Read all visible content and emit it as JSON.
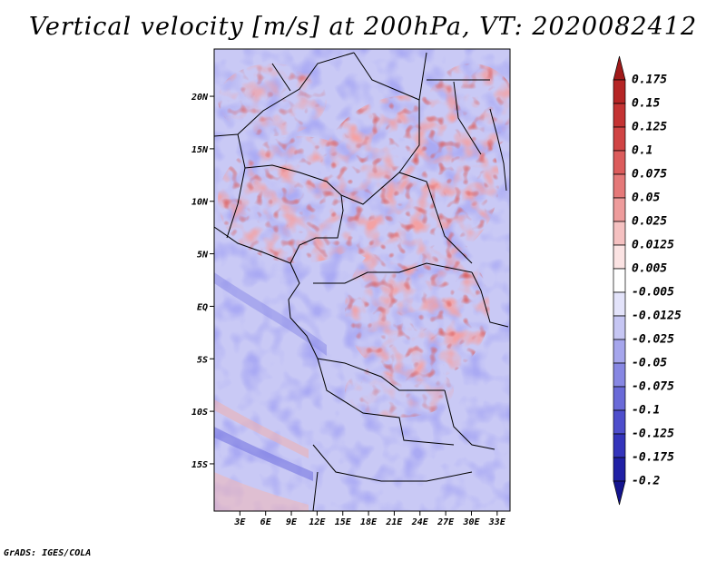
{
  "title": "Vertical velocity [m/s] at 200hPa, VT: 2020082412",
  "credit": "GrADS: IGES/COLA",
  "map": {
    "lon_range": [
      0,
      34.5
    ],
    "lat_range": [
      -19.5,
      24.5
    ],
    "lon_tick_labels": [
      "3E",
      "6E",
      "9E",
      "12E",
      "15E",
      "18E",
      "21E",
      "24E",
      "27E",
      "30E",
      "33E"
    ],
    "lat_tick_labels": [
      "20N",
      "15N",
      "10N",
      "5N",
      "EQ",
      "5S",
      "10S",
      "15S"
    ],
    "field": "vertical velocity",
    "units": "m/s",
    "level": "200hPa",
    "valid_time": "2020082412"
  },
  "colorbar": {
    "labels": [
      "0.175",
      "0.15",
      "0.125",
      "0.1",
      "0.075",
      "0.05",
      "0.025",
      "0.0125",
      "0.005",
      "-0.005",
      "-0.0125",
      "-0.025",
      "-0.05",
      "-0.075",
      "-0.1",
      "-0.125",
      "-0.175",
      "-0.2"
    ],
    "colors": [
      "#a01a1a",
      "#b52525",
      "#c43333",
      "#d04444",
      "#dc5c5c",
      "#e57979",
      "#ee9c9c",
      "#f5c1c1",
      "#fbe3e3",
      "#ffffff",
      "#e3e3fa",
      "#c6c6f3",
      "#a6a6ec",
      "#8787e3",
      "#6a6ad8",
      "#4e4ecc",
      "#3434bb",
      "#2020a5",
      "#14148e"
    ]
  }
}
